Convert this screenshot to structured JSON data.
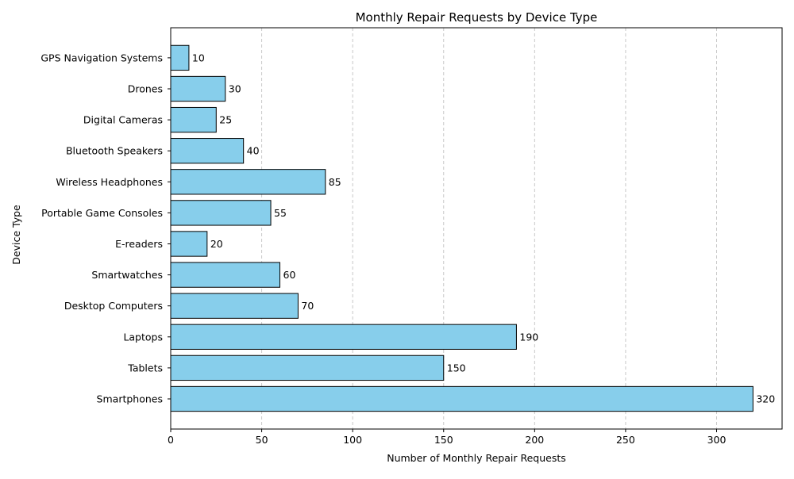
{
  "chart_data": {
    "type": "bar",
    "orientation": "horizontal",
    "title": "Monthly Repair Requests by Device Type",
    "xlabel": "Number of Monthly Repair Requests",
    "ylabel": "Device Type",
    "xlim": [
      0,
      336
    ],
    "xticks": [
      0,
      50,
      100,
      150,
      200,
      250,
      300
    ],
    "grid": "x, dashed",
    "bar_color": "#87CEEB",
    "bar_edge_color": "#000000",
    "categories": [
      "Smartphones",
      "Tablets",
      "Laptops",
      "Desktop Computers",
      "Smartwatches",
      "E-readers",
      "Portable Game Consoles",
      "Wireless Headphones",
      "Bluetooth Speakers",
      "Digital Cameras",
      "Drones",
      "GPS Navigation Systems"
    ],
    "values": [
      320,
      150,
      190,
      70,
      60,
      20,
      55,
      85,
      40,
      25,
      30,
      10
    ]
  }
}
